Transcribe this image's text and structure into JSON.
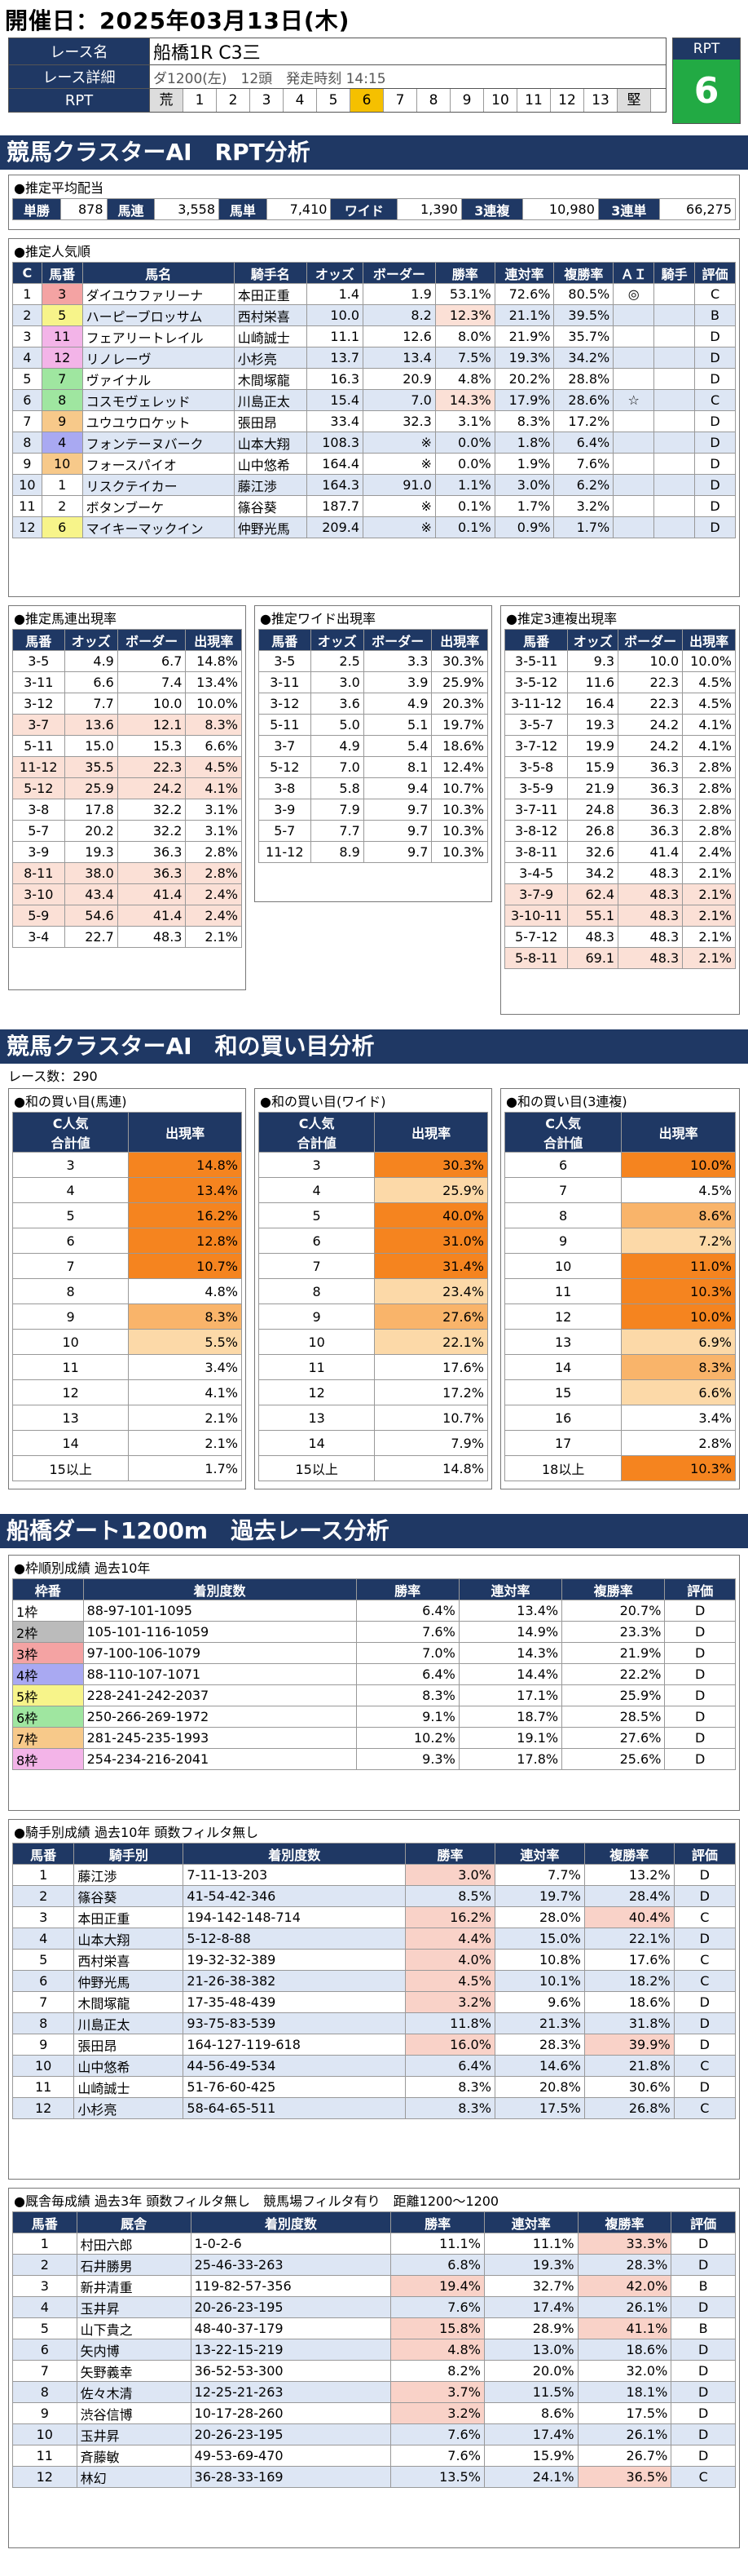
{
  "header": {
    "date_label": "開催日：2025年03月13日(木)",
    "race_name_label": "レース名",
    "race_name": "船橋1R C3三",
    "race_detail_label": "レース詳細",
    "race_detail": "ダ1200(左)　12頭　発走時刻 14:15",
    "rpt_label": "RPT",
    "rpt_scale": [
      "荒",
      "1",
      "2",
      "3",
      "4",
      "5",
      "6",
      "7",
      "8",
      "9",
      "10",
      "11",
      "12",
      "13",
      "堅"
    ],
    "rpt_selected": "6",
    "rpt_box_label": "RPT",
    "rpt_value": "6"
  },
  "section1_title": "競馬クラスターAI　RPT分析",
  "payout": {
    "caption": "●推定平均配当",
    "items": [
      {
        "label": "単勝",
        "value": "878"
      },
      {
        "label": "馬連",
        "value": "3,558"
      },
      {
        "label": "馬単",
        "value": "7,410"
      },
      {
        "label": "ワイド",
        "value": "1,390"
      },
      {
        "label": "3連複",
        "value": "10,980"
      },
      {
        "label": "3連単",
        "value": "66,275"
      }
    ]
  },
  "popularity": {
    "caption": "●推定人気順",
    "headers": [
      "C",
      "馬番",
      "馬名",
      "騎手名",
      "オッズ",
      "ボーダー",
      "勝率",
      "連対率",
      "複勝率",
      "ＡＩ",
      "騎手",
      "評価"
    ],
    "rows": [
      [
        "1",
        "3",
        "ダイユウファリーナ",
        "本田正重",
        "1.4",
        "1.9",
        "53.1%",
        "72.6%",
        "80.5%",
        "◎",
        "",
        "C"
      ],
      [
        "2",
        "5",
        "ハーピーブロッサム",
        "西村栄喜",
        "10.0",
        "8.2",
        "12.3%",
        "21.1%",
        "39.5%",
        "",
        "",
        "B"
      ],
      [
        "3",
        "11",
        "フェアリートレイル",
        "山崎誠士",
        "11.1",
        "12.6",
        "8.0%",
        "21.9%",
        "35.7%",
        "",
        "",
        "D"
      ],
      [
        "4",
        "12",
        "リノレーヴ",
        "小杉亮",
        "13.7",
        "13.4",
        "7.5%",
        "19.3%",
        "34.2%",
        "",
        "",
        "D"
      ],
      [
        "5",
        "7",
        "ヴァイナル",
        "木間塚龍",
        "16.3",
        "20.9",
        "4.8%",
        "20.2%",
        "28.8%",
        "",
        "",
        "D"
      ],
      [
        "6",
        "8",
        "コスモヴェレッド",
        "川島正太",
        "15.4",
        "7.0",
        "14.3%",
        "17.9%",
        "28.6%",
        "☆",
        "",
        "C"
      ],
      [
        "7",
        "9",
        "ユウユウロケット",
        "張田昂",
        "33.4",
        "32.3",
        "3.1%",
        "8.3%",
        "17.2%",
        "",
        "",
        "D"
      ],
      [
        "8",
        "4",
        "フォンテーヌバーク",
        "山本大翔",
        "108.3",
        "※",
        "0.0%",
        "1.8%",
        "6.4%",
        "",
        "",
        "D"
      ],
      [
        "9",
        "10",
        "フォースパイオ",
        "山中悠希",
        "164.4",
        "※",
        "0.0%",
        "1.9%",
        "7.6%",
        "",
        "",
        "D"
      ],
      [
        "10",
        "1",
        "リスクテイカー",
        "藤江渉",
        "164.3",
        "91.0",
        "1.1%",
        "3.0%",
        "6.2%",
        "",
        "",
        "D"
      ],
      [
        "11",
        "2",
        "ボタンブーケ",
        "篠谷葵",
        "187.7",
        "※",
        "0.1%",
        "1.7%",
        "3.2%",
        "",
        "",
        "D"
      ],
      [
        "12",
        "6",
        "マイキーマックイン",
        "仲野光馬",
        "209.4",
        "※",
        "0.1%",
        "0.9%",
        "1.7%",
        "",
        "",
        "D"
      ]
    ]
  },
  "umaren": {
    "caption": "●推定馬連出現率",
    "headers": [
      "馬番",
      "オッズ",
      "ボーダー",
      "出現率"
    ],
    "rows": [
      [
        "3-5",
        "4.9",
        "6.7",
        "14.8%"
      ],
      [
        "3-11",
        "6.6",
        "7.4",
        "13.4%"
      ],
      [
        "3-12",
        "7.7",
        "10.0",
        "10.0%"
      ],
      [
        "3-7",
        "13.6",
        "12.1",
        "8.3%"
      ],
      [
        "5-11",
        "15.0",
        "15.3",
        "6.6%"
      ],
      [
        "11-12",
        "35.5",
        "22.3",
        "4.5%"
      ],
      [
        "5-12",
        "25.9",
        "24.2",
        "4.1%"
      ],
      [
        "3-8",
        "17.8",
        "32.2",
        "3.1%"
      ],
      [
        "5-7",
        "20.2",
        "32.2",
        "3.1%"
      ],
      [
        "3-9",
        "19.3",
        "36.3",
        "2.8%"
      ],
      [
        "8-11",
        "38.0",
        "36.3",
        "2.8%"
      ],
      [
        "3-10",
        "43.4",
        "41.4",
        "2.4%"
      ],
      [
        "5-9",
        "54.6",
        "41.4",
        "2.4%"
      ],
      [
        "3-4",
        "22.7",
        "48.3",
        "2.1%"
      ]
    ]
  },
  "wide": {
    "caption": "●推定ワイド出現率",
    "headers": [
      "馬番",
      "オッズ",
      "ボーダー",
      "出現率"
    ],
    "rows": [
      [
        "3-5",
        "2.5",
        "3.3",
        "30.3%"
      ],
      [
        "3-11",
        "3.0",
        "3.9",
        "25.9%"
      ],
      [
        "3-12",
        "3.6",
        "4.9",
        "20.3%"
      ],
      [
        "5-11",
        "5.0",
        "5.1",
        "19.7%"
      ],
      [
        "3-7",
        "4.9",
        "5.4",
        "18.6%"
      ],
      [
        "5-12",
        "7.0",
        "8.1",
        "12.4%"
      ],
      [
        "3-8",
        "5.8",
        "9.4",
        "10.7%"
      ],
      [
        "3-9",
        "7.9",
        "9.7",
        "10.3%"
      ],
      [
        "5-7",
        "7.7",
        "9.7",
        "10.3%"
      ],
      [
        "11-12",
        "8.9",
        "9.7",
        "10.3%"
      ]
    ]
  },
  "trio": {
    "caption": "●推定3連複出現率",
    "headers": [
      "馬番",
      "オッズ",
      "ボーダー",
      "出現率"
    ],
    "rows": [
      [
        "3-5-11",
        "9.3",
        "10.0",
        "10.0%"
      ],
      [
        "3-5-12",
        "11.6",
        "22.3",
        "4.5%"
      ],
      [
        "3-11-12",
        "16.4",
        "22.3",
        "4.5%"
      ],
      [
        "3-5-7",
        "19.3",
        "24.2",
        "4.1%"
      ],
      [
        "3-7-12",
        "19.9",
        "24.2",
        "4.1%"
      ],
      [
        "3-5-8",
        "15.9",
        "36.3",
        "2.8%"
      ],
      [
        "3-5-9",
        "21.9",
        "36.3",
        "2.8%"
      ],
      [
        "3-7-11",
        "24.8",
        "36.3",
        "2.8%"
      ],
      [
        "3-8-12",
        "26.8",
        "36.3",
        "2.8%"
      ],
      [
        "3-8-11",
        "32.6",
        "41.4",
        "2.4%"
      ],
      [
        "3-4-5",
        "34.2",
        "48.3",
        "2.1%"
      ],
      [
        "3-7-9",
        "62.4",
        "48.3",
        "2.1%"
      ],
      [
        "3-10-11",
        "55.1",
        "48.3",
        "2.1%"
      ],
      [
        "5-7-12",
        "48.3",
        "48.3",
        "2.1%"
      ],
      [
        "5-8-11",
        "69.1",
        "48.3",
        "2.1%"
      ]
    ]
  },
  "section2_title": "競馬クラスターAI　和の買い目分析",
  "race_count": "レース数：290",
  "sum_umaren": {
    "caption": "●和の買い目(馬連)",
    "headers": [
      "C人気\n合計値",
      "出現率"
    ],
    "rows": [
      [
        "3",
        "14.8%"
      ],
      [
        "4",
        "13.4%"
      ],
      [
        "5",
        "16.2%"
      ],
      [
        "6",
        "12.8%"
      ],
      [
        "7",
        "10.7%"
      ],
      [
        "8",
        "4.8%"
      ],
      [
        "9",
        "8.3%"
      ],
      [
        "10",
        "5.5%"
      ],
      [
        "11",
        "3.4%"
      ],
      [
        "12",
        "4.1%"
      ],
      [
        "13",
        "2.1%"
      ],
      [
        "14",
        "2.1%"
      ],
      [
        "15以上",
        "1.7%"
      ]
    ]
  },
  "sum_wide": {
    "caption": "●和の買い目(ワイド)",
    "headers": [
      "C人気\n合計値",
      "出現率"
    ],
    "rows": [
      [
        "3",
        "30.3%"
      ],
      [
        "4",
        "25.9%"
      ],
      [
        "5",
        "40.0%"
      ],
      [
        "6",
        "31.0%"
      ],
      [
        "7",
        "31.4%"
      ],
      [
        "8",
        "23.4%"
      ],
      [
        "9",
        "27.6%"
      ],
      [
        "10",
        "22.1%"
      ],
      [
        "11",
        "17.6%"
      ],
      [
        "12",
        "17.2%"
      ],
      [
        "13",
        "10.7%"
      ],
      [
        "14",
        "7.9%"
      ],
      [
        "15以上",
        "14.8%"
      ]
    ]
  },
  "sum_trio": {
    "caption": "●和の買い目(3連複)",
    "headers": [
      "C人気\n合計値",
      "出現率"
    ],
    "rows": [
      [
        "6",
        "10.0%"
      ],
      [
        "7",
        "4.5%"
      ],
      [
        "8",
        "8.6%"
      ],
      [
        "9",
        "7.2%"
      ],
      [
        "10",
        "11.0%"
      ],
      [
        "11",
        "10.3%"
      ],
      [
        "12",
        "10.0%"
      ],
      [
        "13",
        "6.9%"
      ],
      [
        "14",
        "8.3%"
      ],
      [
        "15",
        "6.6%"
      ],
      [
        "16",
        "3.4%"
      ],
      [
        "17",
        "2.8%"
      ],
      [
        "18以上",
        "10.3%"
      ]
    ]
  },
  "section3_title": "船橋ダート1200m　過去レース分析",
  "waku": {
    "caption": "●枠順別成績 過去10年",
    "headers": [
      "枠番",
      "着別度数",
      "勝率",
      "連対率",
      "複勝率",
      "評価"
    ],
    "rows": [
      [
        "1枠",
        "88-97-101-1095",
        "6.4%",
        "13.4%",
        "20.7%",
        "D"
      ],
      [
        "2枠",
        "105-101-116-1059",
        "7.6%",
        "14.9%",
        "23.3%",
        "D"
      ],
      [
        "3枠",
        "97-100-106-1079",
        "7.0%",
        "14.3%",
        "21.9%",
        "D"
      ],
      [
        "4枠",
        "88-110-107-1071",
        "6.4%",
        "14.4%",
        "22.2%",
        "D"
      ],
      [
        "5枠",
        "228-241-242-2037",
        "8.3%",
        "17.1%",
        "25.9%",
        "D"
      ],
      [
        "6枠",
        "250-266-269-1972",
        "9.1%",
        "18.7%",
        "28.5%",
        "D"
      ],
      [
        "7枠",
        "281-245-235-1993",
        "10.2%",
        "19.1%",
        "27.6%",
        "D"
      ],
      [
        "8枠",
        "254-234-216-2041",
        "9.3%",
        "17.8%",
        "25.6%",
        "D"
      ]
    ]
  },
  "jockey": {
    "caption": "●騎手別成績 過去10年 頭数フィルタ無し",
    "headers": [
      "馬番",
      "騎手別",
      "着別度数",
      "勝率",
      "連対率",
      "複勝率",
      "評価"
    ],
    "rows": [
      [
        "1",
        "藤江渉",
        "7-11-13-203",
        "3.0%",
        "7.7%",
        "13.2%",
        "D"
      ],
      [
        "2",
        "篠谷葵",
        "41-54-42-346",
        "8.5%",
        "19.7%",
        "28.4%",
        "D"
      ],
      [
        "3",
        "本田正重",
        "194-142-148-714",
        "16.2%",
        "28.0%",
        "40.4%",
        "C"
      ],
      [
        "4",
        "山本大翔",
        "5-12-8-88",
        "4.4%",
        "15.0%",
        "22.1%",
        "D"
      ],
      [
        "5",
        "西村栄喜",
        "19-32-32-389",
        "4.0%",
        "10.8%",
        "17.6%",
        "C"
      ],
      [
        "6",
        "仲野光馬",
        "21-26-38-382",
        "4.5%",
        "10.1%",
        "18.2%",
        "C"
      ],
      [
        "7",
        "木間塚龍",
        "17-35-48-439",
        "3.2%",
        "9.6%",
        "18.6%",
        "D"
      ],
      [
        "8",
        "川島正太",
        "93-75-83-539",
        "11.8%",
        "21.3%",
        "31.8%",
        "D"
      ],
      [
        "9",
        "張田昂",
        "164-127-119-618",
        "16.0%",
        "28.3%",
        "39.9%",
        "D"
      ],
      [
        "10",
        "山中悠希",
        "44-56-49-534",
        "6.4%",
        "14.6%",
        "21.8%",
        "C"
      ],
      [
        "11",
        "山崎誠士",
        "51-76-60-425",
        "8.3%",
        "20.8%",
        "30.6%",
        "D"
      ],
      [
        "12",
        "小杉亮",
        "58-64-65-511",
        "8.3%",
        "17.5%",
        "26.8%",
        "C"
      ]
    ]
  },
  "trainer": {
    "caption": "●厩舎毎成績 過去3年 頭数フィルタ無し　競馬場フィルタ有り　距離1200〜1200",
    "headers": [
      "馬番",
      "厩舎",
      "着別度数",
      "勝率",
      "連対率",
      "複勝率",
      "評価"
    ],
    "rows": [
      [
        "1",
        "村田六郎",
        "1-0-2-6",
        "11.1%",
        "11.1%",
        "33.3%",
        "D"
      ],
      [
        "2",
        "石井勝男",
        "25-46-33-263",
        "6.8%",
        "19.3%",
        "28.3%",
        "D"
      ],
      [
        "3",
        "新井清重",
        "119-82-57-356",
        "19.4%",
        "32.7%",
        "42.0%",
        "B"
      ],
      [
        "4",
        "玉井昇",
        "20-26-23-195",
        "7.6%",
        "17.4%",
        "26.1%",
        "D"
      ],
      [
        "5",
        "山下貴之",
        "48-40-37-179",
        "15.8%",
        "28.9%",
        "41.1%",
        "B"
      ],
      [
        "6",
        "矢内博",
        "13-22-15-219",
        "4.8%",
        "13.0%",
        "18.6%",
        "D"
      ],
      [
        "7",
        "矢野義幸",
        "36-52-53-300",
        "8.2%",
        "20.0%",
        "32.0%",
        "D"
      ],
      [
        "8",
        "佐々木清",
        "12-25-21-263",
        "3.7%",
        "11.5%",
        "18.1%",
        "D"
      ],
      [
        "9",
        "渋谷信博",
        "10-17-28-260",
        "3.2%",
        "8.6%",
        "17.5%",
        "D"
      ],
      [
        "10",
        "玉井昇",
        "20-26-23-195",
        "7.6%",
        "17.4%",
        "26.1%",
        "D"
      ],
      [
        "11",
        "斉藤敏",
        "49-53-69-470",
        "7.6%",
        "15.9%",
        "26.7%",
        "D"
      ],
      [
        "12",
        "林幻",
        "36-28-33-169",
        "13.5%",
        "24.1%",
        "36.5%",
        "C"
      ]
    ]
  },
  "colors": {
    "navy": "#1f3864",
    "rpt_green": "#22aa44",
    "rpt_selected": "#f5c000"
  }
}
